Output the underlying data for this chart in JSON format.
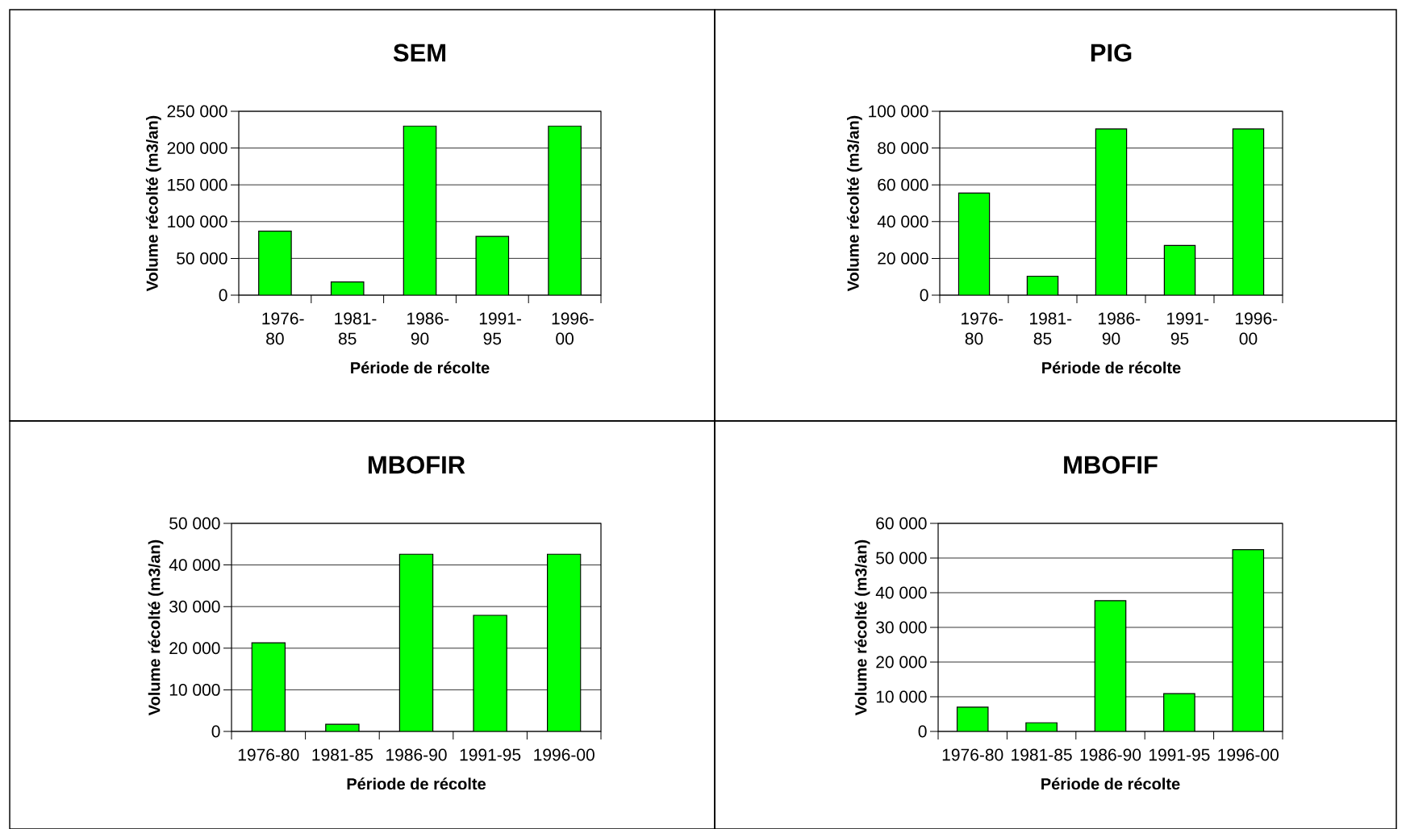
{
  "chart_data": [
    {
      "type": "bar",
      "title": "SEM",
      "xlabel": "Période de récolte",
      "ylabel": "Volume récolté (m3/an)",
      "categories": [
        "1976-80",
        "1981-85",
        "1986-90",
        "1991-95",
        "1996-00"
      ],
      "values": [
        87000,
        18000,
        230000,
        80000,
        230000
      ],
      "color": "#00ff00",
      "ylim": [
        0,
        250000
      ],
      "yticks": [
        0,
        {
          "value": 50000,
          "label": "50 000"
        },
        {
          "value": 100000,
          "label": "100 000"
        },
        {
          "value": 150000,
          "label": "150 000"
        },
        {
          "value": 200000,
          "label": "200 000"
        },
        {
          "value": 250000,
          "label": "250 000"
        }
      ],
      "grid": "y"
    },
    {
      "type": "bar",
      "title": "PIG",
      "xlabel": "Période de récolte",
      "ylabel": "Volume récolté (m3/an)",
      "categories": [
        "1976-80",
        "1981-85",
        "1986-90",
        "1991-95",
        "1996-00"
      ],
      "values": [
        55500,
        10300,
        90400,
        27000,
        90400
      ],
      "color": "#00ff00",
      "ylim": [
        0,
        100000
      ],
      "yticks": [
        0,
        {
          "value": 20000,
          "label": "20 000"
        },
        {
          "value": 40000,
          "label": "40 000"
        },
        {
          "value": 60000,
          "label": "60 000"
        },
        {
          "value": 80000,
          "label": "80 000"
        },
        {
          "value": 100000,
          "label": "100 000"
        }
      ],
      "grid": "y"
    },
    {
      "type": "bar",
      "title": "MBOFIR",
      "xlabel": "Période de récolte",
      "ylabel": "Volume récolté (m3/an)",
      "categories": [
        "1976-80",
        "1981-85",
        "1986-90",
        "1991-95",
        "1996-00"
      ],
      "values": [
        21300,
        1700,
        42600,
        27900,
        42600
      ],
      "color": "#00ff00",
      "ylim": [
        0,
        50000
      ],
      "yticks": [
        0,
        {
          "value": 10000,
          "label": "10 000"
        },
        {
          "value": 20000,
          "label": "20 000"
        },
        {
          "value": 30000,
          "label": "30 000"
        },
        {
          "value": 40000,
          "label": "40 000"
        },
        {
          "value": 50000,
          "label": "50 000"
        }
      ],
      "grid": "y"
    },
    {
      "type": "bar",
      "title": "MBOFIF",
      "xlabel": "Période de récolte",
      "ylabel": "Volume récolté (m3/an)",
      "categories": [
        "1976-80",
        "1981-85",
        "1986-90",
        "1991-95",
        "1996-00"
      ],
      "values": [
        7000,
        2500,
        37700,
        10900,
        52400
      ],
      "color": "#00ff00",
      "ylim": [
        0,
        60000
      ],
      "yticks": [
        0,
        {
          "value": 10000,
          "label": "10 000"
        },
        {
          "value": 20000,
          "label": "20 000"
        },
        {
          "value": 30000,
          "label": "30 000"
        },
        {
          "value": 40000,
          "label": "40 000"
        },
        {
          "value": 50000,
          "label": "50 000"
        },
        {
          "value": 60000,
          "label": "60 000"
        }
      ],
      "grid": "y"
    }
  ]
}
